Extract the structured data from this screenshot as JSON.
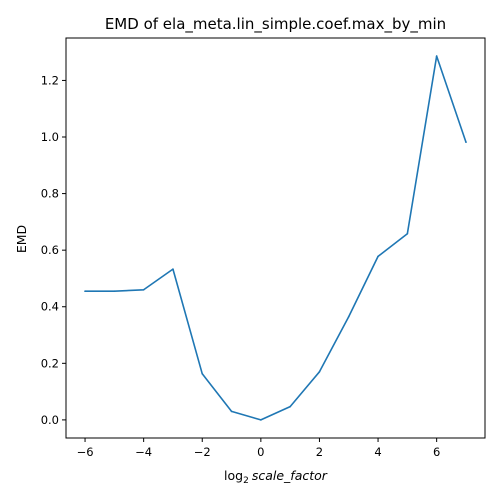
{
  "chart_data": {
    "type": "line",
    "title": "EMD of ela_meta.lin_simple.coef.max_by_min",
    "xlabel_prefix": "log",
    "xlabel_sub": "2",
    "xlabel_var": "scale_factor",
    "ylabel": "EMD",
    "xlim": [
      -6.65,
      7.65
    ],
    "ylim": [
      -0.064,
      1.35
    ],
    "xticks": [
      -6,
      -4,
      -2,
      0,
      2,
      4,
      6
    ],
    "xtick_labels": [
      "−6",
      "−4",
      "−2",
      "0",
      "2",
      "4",
      "6"
    ],
    "yticks": [
      0.0,
      0.2,
      0.4,
      0.6,
      0.8,
      1.0,
      1.2
    ],
    "ytick_labels": [
      "0.0",
      "0.2",
      "0.4",
      "0.6",
      "0.8",
      "1.0",
      "1.2"
    ],
    "grid": false,
    "color": "#1f77b4",
    "x": [
      -6,
      -5,
      -4,
      -3,
      -2,
      -1,
      0,
      1,
      2,
      3,
      4,
      5,
      6,
      7
    ],
    "y": [
      0.455,
      0.455,
      0.46,
      0.533,
      0.163,
      0.03,
      0.0,
      0.047,
      0.17,
      0.365,
      0.578,
      0.658,
      1.286,
      0.982
    ]
  }
}
